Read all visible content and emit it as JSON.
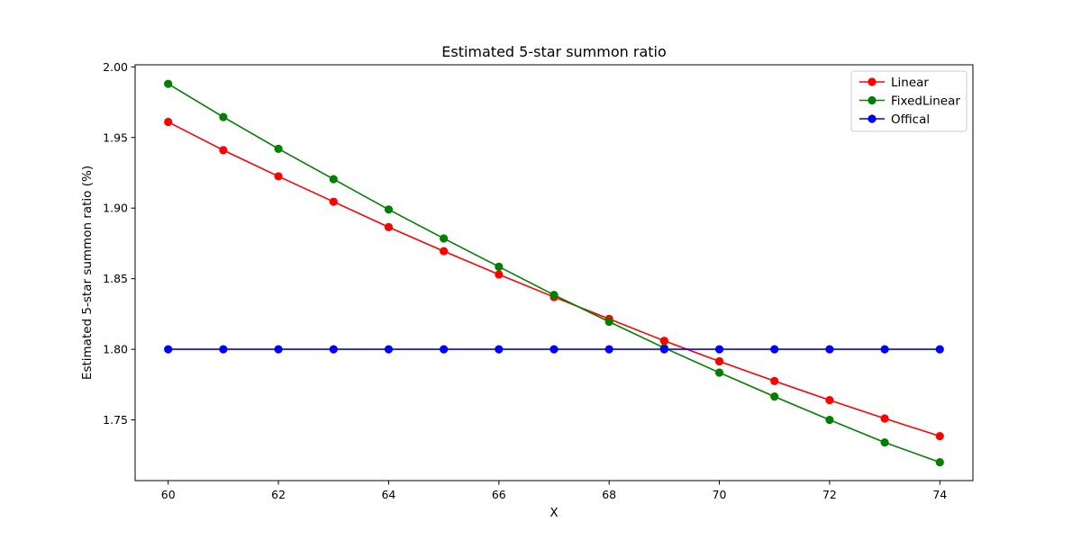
{
  "chart_data": {
    "type": "line",
    "title": "Estimated 5-star summon ratio",
    "xlabel": "X",
    "ylabel": "Estimated 5-star summon ratio (%)",
    "x": [
      60,
      61,
      62,
      63,
      64,
      65,
      66,
      67,
      68,
      69,
      70,
      71,
      72,
      73,
      74
    ],
    "xlim": [
      59.4,
      74.6
    ],
    "ylim": [
      1.707,
      2.0015
    ],
    "xticks": [
      60,
      62,
      64,
      66,
      68,
      70,
      72,
      74
    ],
    "yticks": [
      1.75,
      1.8,
      1.85,
      1.9,
      1.95,
      2.0
    ],
    "ytick_labels": [
      "1.75",
      "1.80",
      "1.85",
      "1.90",
      "1.95",
      "2.00"
    ],
    "grid": false,
    "legend_position": "top-right",
    "series": [
      {
        "name": "Linear",
        "color": "#ff0000",
        "marker": "circle",
        "values": [
          1.961,
          1.941,
          1.9225,
          1.9045,
          1.8865,
          1.8695,
          1.853,
          1.837,
          1.8215,
          1.806,
          1.7915,
          1.7775,
          1.764,
          1.751,
          1.7385
        ]
      },
      {
        "name": "FixedLinear",
        "color": "#008000",
        "marker": "circle",
        "values": [
          1.988,
          1.9645,
          1.942,
          1.9205,
          1.899,
          1.8785,
          1.8585,
          1.8385,
          1.8195,
          1.801,
          1.7835,
          1.7665,
          1.75,
          1.734,
          1.72
        ]
      },
      {
        "name": "Offical",
        "color": "#0000ff",
        "marker": "circle",
        "values": [
          1.8,
          1.8,
          1.8,
          1.8,
          1.8,
          1.8,
          1.8,
          1.8,
          1.8,
          1.8,
          1.8,
          1.8,
          1.8,
          1.8,
          1.8
        ]
      }
    ]
  }
}
